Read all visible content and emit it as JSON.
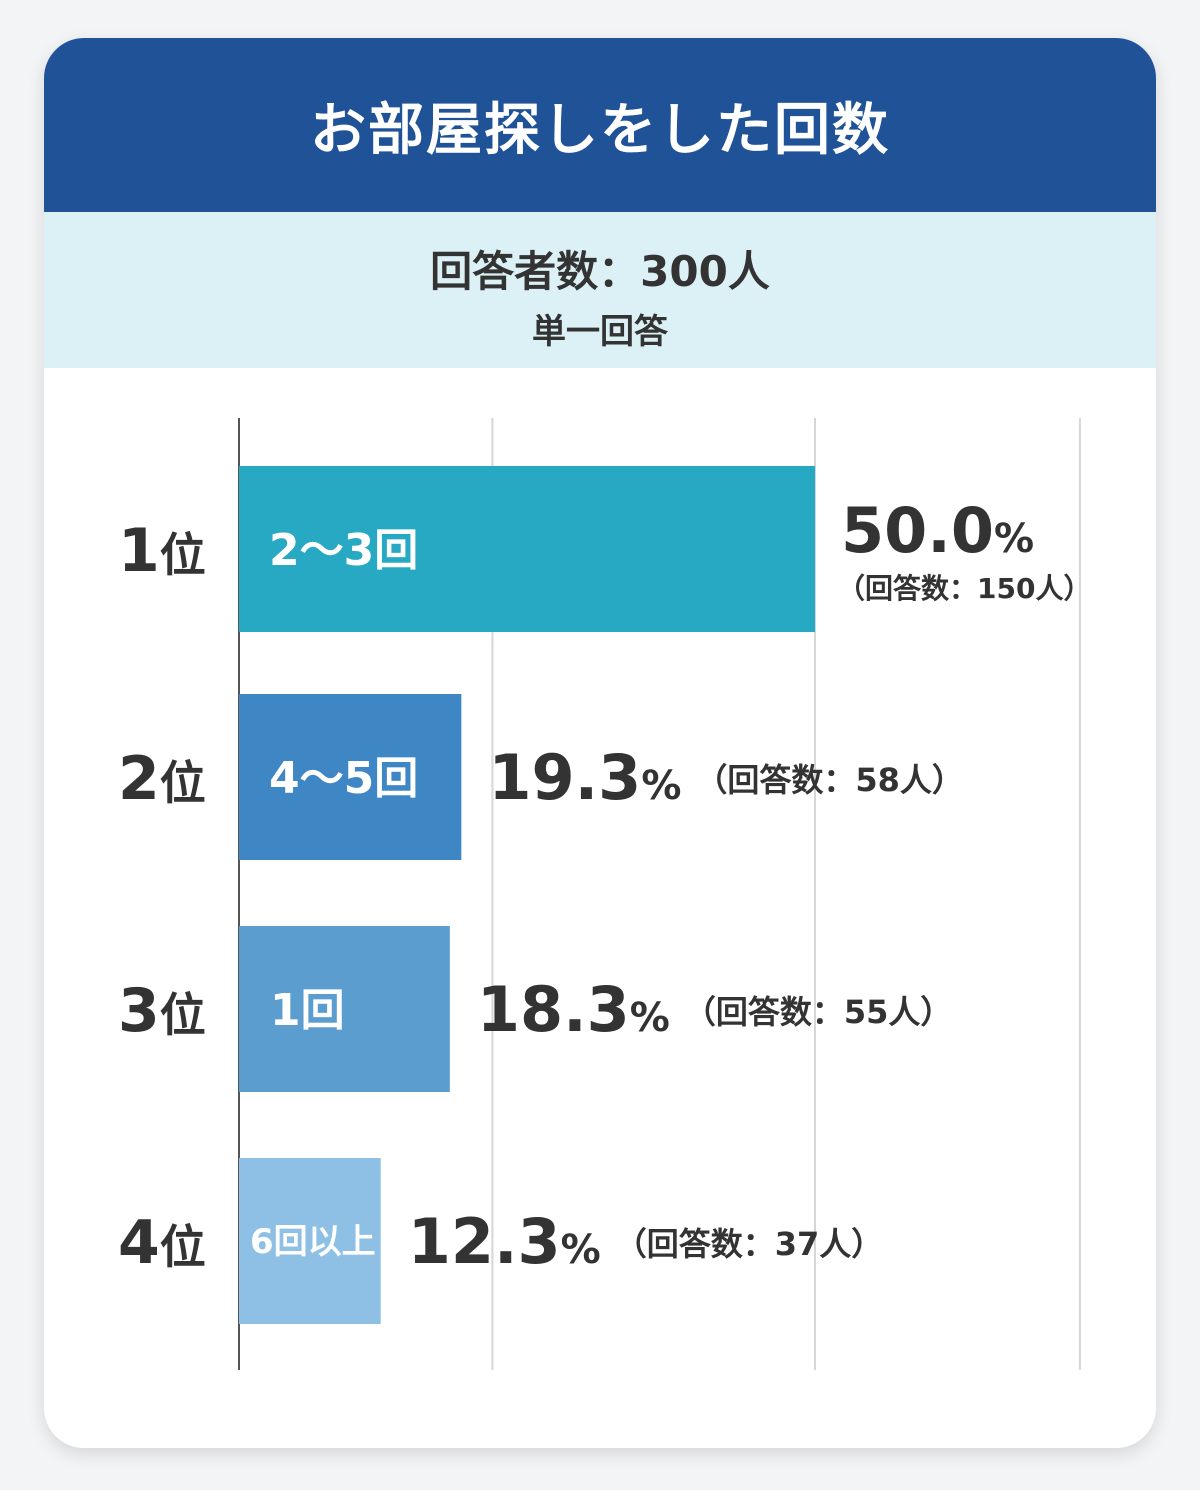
{
  "header": {
    "title": "お部屋探しをした回数",
    "respondents": "回答者数：300人",
    "answer_type": "単一回答"
  },
  "colors": {
    "title_band": "#1f5297",
    "sub_band": "#dbf1f6",
    "bars": [
      "#27a9c3",
      "#3f86c4",
      "#5c9dd0",
      "#8ec0e6"
    ]
  },
  "chart_data": {
    "type": "bar",
    "orientation": "horizontal",
    "categories": [
      "2〜3回",
      "4〜5回",
      "1回",
      "6回以上"
    ],
    "ranks": [
      "1位",
      "2位",
      "3位",
      "4位"
    ],
    "values": [
      50.0,
      19.3,
      18.3,
      12.3
    ],
    "value_labels": [
      "50.0",
      "19.3",
      "18.3",
      "12.3"
    ],
    "unit": "%",
    "counts": [
      "（回答数：150人）",
      "（回答数：58人）",
      "（回答数：55人）",
      "（回答数：37人）"
    ],
    "xlim": [
      0,
      73
    ],
    "gridlines": [
      0,
      22,
      50,
      73
    ],
    "grid": true,
    "legend": "none"
  }
}
